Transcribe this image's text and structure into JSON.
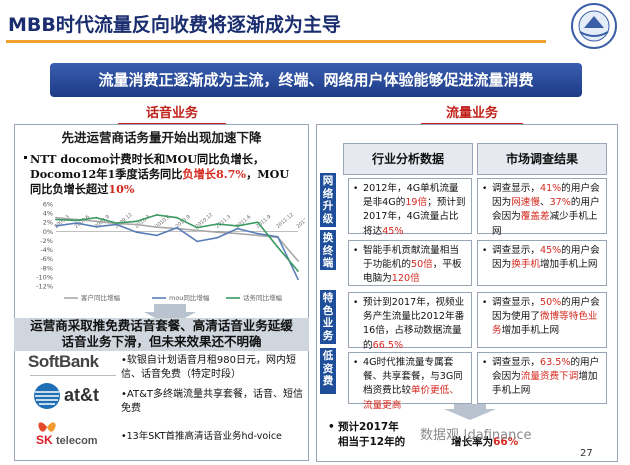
{
  "page": {
    "title": "MBB时代流量反向收费将逐渐成为主导",
    "banner": "流量消费正逐渐成为主流，终端、网络用户体验能够促进流量消费",
    "page_number": "27"
  },
  "left": {
    "section_label": "话音业务",
    "chart_header": "先进运营商话务量开始出现加速下降",
    "note_line1_a": "NTT docomo计费时长和MOU同比负增长，",
    "note_line2_a": "Docomo12年1季度话务同比",
    "note_line2_red": "负增长8.7%",
    "note_line2_b": "，MOU",
    "note_line3_a": "同比负增长超过",
    "note_line3_red": "10%",
    "measure_header_1": "运营商采取推免费话音套餐、高清话音业务延缓",
    "measure_header_2": "话音业务下滑，但未来效果还不明确",
    "brands": {
      "softbank": "SoftBank",
      "att": "at&t",
      "sk_top": "SK",
      "sk_bottom": "telecom"
    },
    "measures": [
      "•软银自计划语音月租980日元，网内短信、话音免费（特定时段）",
      "•AT&T多终端流量共享套餐，话音、短信免费",
      "•13年SKT首推高清话音业务hd-voice"
    ]
  },
  "chart_data": {
    "type": "line",
    "ylim": [
      -12,
      6
    ],
    "y_ticks": [
      "6%",
      "4%",
      "2%",
      "0%",
      "-2%",
      "-4%",
      "-6%",
      "-8%",
      "-10%",
      "-12%"
    ],
    "x": [
      "2009.3",
      "2009.6",
      "2009.9",
      "2009.12",
      "2010.3",
      "2010.6",
      "2010.9",
      "2010.12",
      "2011.3",
      "2011.6",
      "2011.9",
      "2011.12",
      "2012.3"
    ],
    "series": [
      {
        "name": "客户同比增幅",
        "color": "#a8a8a8",
        "values": [
          3.0,
          2.6,
          2.2,
          1.7,
          1.5,
          0.9,
          0.6,
          0.2,
          -0.2,
          -0.5,
          -0.9,
          -1.3,
          -6.5
        ]
      },
      {
        "name": "mou同比增幅",
        "color": "#5a7fb8",
        "values": [
          1.2,
          1.8,
          1.0,
          1.5,
          -0.2,
          -0.9,
          0.8,
          -2.2,
          -1.4,
          0.6,
          -0.5,
          -1.2,
          -10.5
        ]
      },
      {
        "name": "话务同比增幅",
        "color": "#3a9a62",
        "values": [
          2.6,
          2.4,
          3.0,
          1.8,
          2.2,
          3.6,
          3.0,
          0.8,
          1.6,
          1.2,
          2.0,
          -3.5,
          -8.7
        ]
      }
    ]
  },
  "right": {
    "section_label": "流量业务",
    "col_headers": [
      "行业分析数据",
      "市场调查结果"
    ],
    "rows": [
      {
        "side_label": "网络升级",
        "left": [
          "2012年，4G单机流量是非4G的",
          "19倍",
          "；预计到2017年，4G流量占比将达",
          "45%"
        ],
        "right": [
          "调查显示，",
          "41%",
          "的用户会因为",
          "网速慢",
          "、",
          "37%",
          "的用户会因为",
          "覆盖差",
          "减少手机上网"
        ]
      },
      {
        "side_label": "换终端",
        "left": [
          "智能手机贡献流量相当于功能机的",
          "50倍",
          "，平板电脑为",
          "120倍"
        ],
        "right": [
          "调查显示，",
          "45%",
          "的用户会因为",
          "换手机",
          "增加手机上网"
        ]
      },
      {
        "side_label": "特色业务",
        "left": [
          "预计到2017年，视频业务产生流量比2012年番16倍，占移动数据流量的",
          "66.5%"
        ],
        "right": [
          "调查显示，",
          "50%",
          "的用户会因为使用了",
          "微博等特色业务",
          "增加手机上网"
        ]
      },
      {
        "side_label": "低资费",
        "left": [
          "4G时代推流量专属套餐、共享套餐，与3G同档资费比较",
          "单价更低、流量更高"
        ],
        "right": [
          "调查显示，",
          "63.5%",
          "的用户会因为",
          "流量资费下调",
          "增加手机上网"
        ]
      }
    ],
    "bottom_line1": "预计2017年",
    "bottom_line2_a": "相当于12年的",
    "bottom_line2_b": "增长率为",
    "bottom_line2_red": "66%",
    "watermark": "数据观 |dafinance"
  },
  "colors": {
    "title": "#1a2d6e",
    "accent_line": "#f0a030",
    "banner": "#2a4c9e",
    "section_red": "#c0221b",
    "highlight_red": "#d42a20",
    "side_blue": "#1f4f9a"
  }
}
